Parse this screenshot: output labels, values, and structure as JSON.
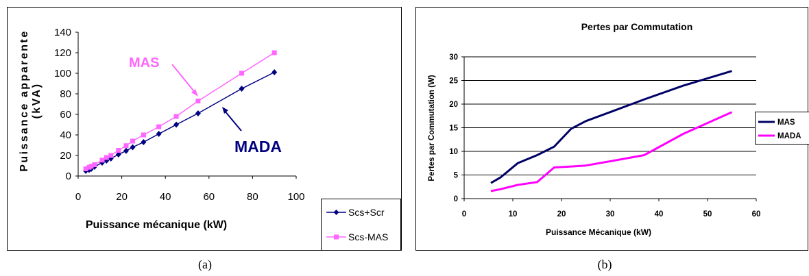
{
  "colors": {
    "mas_a": "#ff66ff",
    "mada_a": "#000080",
    "mas_b": "#000066",
    "mada_b": "#ff00ff",
    "frame": "#000000",
    "grid": "#000000"
  },
  "captions": {
    "a": "(a)",
    "b": "(b)"
  },
  "chart_data": [
    {
      "type": "line",
      "title": "",
      "xlabel": "Puissance mécanique (kW)",
      "ylabel": "Puissance apparente (kVA)",
      "ylabel_lines": [
        "Puissance apparente",
        "(kVA)"
      ],
      "xlim": [
        0,
        100
      ],
      "ylim": [
        0,
        140
      ],
      "x_ticks": [
        "0",
        "20",
        "40",
        "60",
        "80",
        "100"
      ],
      "y_ticks": [
        "0",
        "20",
        "40",
        "60",
        "80",
        "100",
        "120",
        "140"
      ],
      "grid": false,
      "legend_position": "bottom-right",
      "annotations": [
        "MAS",
        "MADA"
      ],
      "series": [
        {
          "name": "Scs+Scr",
          "marker": "diamond",
          "points": [
            [
              3.5,
              5
            ],
            [
              5,
              6
            ],
            [
              6,
              7
            ],
            [
              7.5,
              9
            ],
            [
              11,
              13
            ],
            [
              13,
              15
            ],
            [
              15,
              17
            ],
            [
              18.5,
              21
            ],
            [
              22,
              24.5
            ],
            [
              25,
              28
            ],
            [
              30,
              33
            ],
            [
              37,
              41
            ],
            [
              45,
              50
            ],
            [
              55,
              61
            ],
            [
              75,
              85
            ],
            [
              90,
              101
            ]
          ]
        },
        {
          "name": "Scs-MAS",
          "marker": "square",
          "points": [
            [
              3.5,
              7
            ],
            [
              5,
              8.5
            ],
            [
              6,
              9.5
            ],
            [
              7.5,
              11
            ],
            [
              11,
              15.5
            ],
            [
              13,
              18
            ],
            [
              15,
              20
            ],
            [
              18.5,
              25
            ],
            [
              22,
              29.5
            ],
            [
              25,
              34
            ],
            [
              30,
              40
            ],
            [
              37,
              48
            ],
            [
              45,
              58
            ],
            [
              55,
              73
            ],
            [
              75,
              100
            ],
            [
              90,
              120
            ]
          ]
        }
      ]
    },
    {
      "type": "line",
      "title": "Pertes par Commutation",
      "xlabel": "Puissance Mécanique (kW)",
      "ylabel": "Pertes par Commutation (W)",
      "xlim": [
        0,
        60
      ],
      "ylim": [
        0,
        30
      ],
      "x_ticks": [
        "0",
        "10",
        "20",
        "30",
        "40",
        "50",
        "60"
      ],
      "y_ticks": [
        "0",
        "5",
        "10",
        "15",
        "20",
        "25",
        "30"
      ],
      "grid": true,
      "legend_position": "right",
      "series": [
        {
          "name": "MAS",
          "points": [
            [
              5.5,
              3.3
            ],
            [
              7.5,
              4.5
            ],
            [
              11,
              7.5
            ],
            [
              15,
              9.2
            ],
            [
              18.5,
              11
            ],
            [
              22,
              14.8
            ],
            [
              25,
              16.4
            ],
            [
              30,
              18.3
            ],
            [
              37,
              21
            ],
            [
              45,
              23.9
            ],
            [
              55,
              27
            ]
          ]
        },
        {
          "name": "MADA",
          "points": [
            [
              5.5,
              1.6
            ],
            [
              7.5,
              2
            ],
            [
              11,
              2.9
            ],
            [
              15,
              3.5
            ],
            [
              18.5,
              6.6
            ],
            [
              22,
              6.8
            ],
            [
              25,
              7
            ],
            [
              30,
              7.9
            ],
            [
              37,
              9.2
            ],
            [
              45,
              13.7
            ],
            [
              55,
              18.3
            ]
          ]
        }
      ]
    }
  ]
}
